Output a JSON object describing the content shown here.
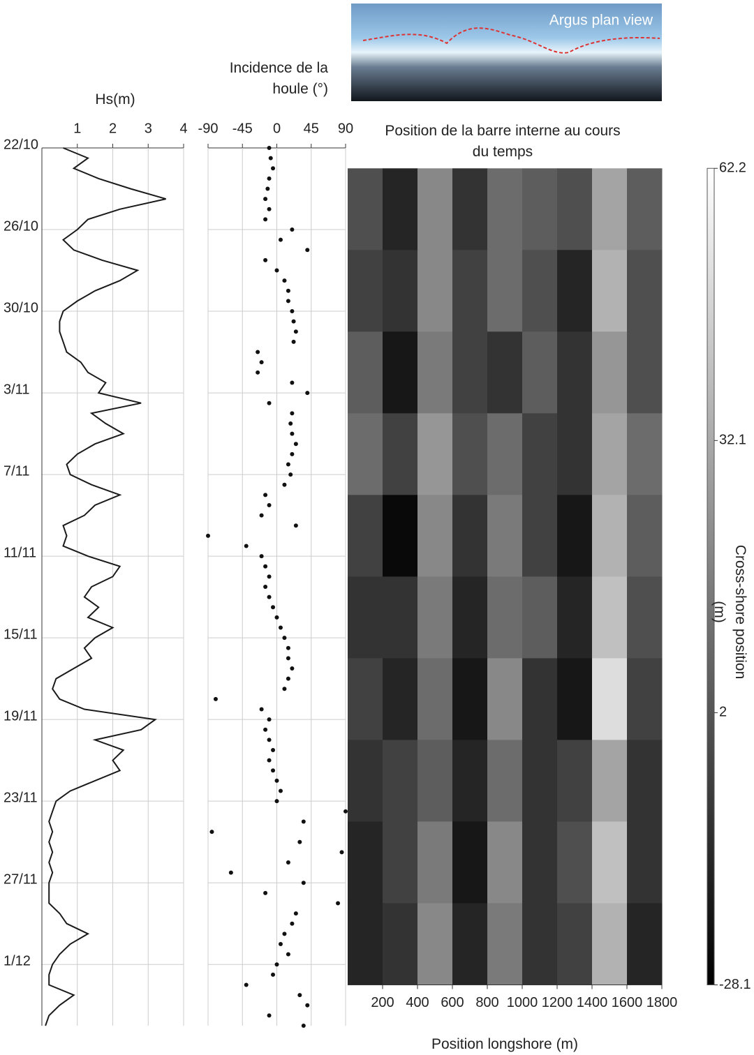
{
  "image": {
    "label": "Argus plan view"
  },
  "chart_data": [
    {
      "type": "line",
      "title": "Hs(m)",
      "x": [
        0,
        0.5,
        1,
        1.5,
        2,
        2.5,
        3,
        3.5,
        4,
        4.5,
        5,
        5.5,
        6,
        6.5,
        7,
        7.5,
        8,
        8.5,
        9,
        9.5,
        10,
        10.5,
        11,
        11.5,
        12,
        12.5,
        13,
        13.5,
        14,
        14.5,
        15,
        15.5,
        16,
        16.5,
        17,
        17.5,
        18,
        18.5,
        19,
        19.5,
        20,
        20.5,
        21,
        21.5,
        22,
        22.5,
        23,
        23.5,
        24,
        24.5,
        25,
        25.5,
        26,
        26.5,
        27,
        27.5,
        28,
        28.5,
        29,
        29.5,
        30,
        30.5,
        31,
        31.5,
        32,
        32.5,
        33,
        33.5,
        34,
        34.5,
        35,
        35.5,
        36,
        36.5,
        37,
        37.5,
        38,
        38.5,
        39,
        39.5,
        40,
        40.5,
        41,
        41.5,
        42,
        42.5,
        43
      ],
      "xlim": [
        0,
        43
      ],
      "xticks": [
        {
          "value": 0,
          "label": "22/10"
        },
        {
          "value": 4,
          "label": "26/10"
        },
        {
          "value": 8,
          "label": "30/10"
        },
        {
          "value": 12,
          "label": "3/11"
        },
        {
          "value": 16,
          "label": "7/11"
        },
        {
          "value": 20,
          "label": "11/11"
        },
        {
          "value": 24,
          "label": "15/11"
        },
        {
          "value": 28,
          "label": "19/11"
        },
        {
          "value": 32,
          "label": "23/11"
        },
        {
          "value": 36,
          "label": "27/11"
        },
        {
          "value": 40,
          "label": "1/12"
        }
      ],
      "ylim": [
        0,
        4
      ],
      "yticks": [
        1,
        2,
        3,
        4
      ],
      "grid": true,
      "series": [
        {
          "color": "#1a1a1a",
          "values": [
            0.6,
            1.3,
            0.9,
            1.6,
            2.5,
            3.5,
            2.2,
            1.3,
            1.0,
            0.6,
            0.9,
            1.7,
            2.7,
            2.2,
            1.5,
            1.0,
            0.6,
            0.5,
            0.5,
            0.6,
            0.7,
            1.1,
            1.3,
            1.8,
            1.6,
            2.8,
            1.4,
            1.8,
            2.3,
            1.5,
            1.0,
            0.7,
            0.8,
            1.4,
            2.2,
            1.5,
            1.2,
            0.6,
            0.7,
            0.6,
            1.3,
            2.2,
            2.0,
            1.4,
            1.2,
            1.6,
            1.3,
            2.0,
            1.5,
            1.2,
            1.4,
            0.9,
            0.4,
            0.3,
            0.5,
            1.2,
            3.2,
            2.8,
            1.5,
            2.3,
            2.0,
            2.2,
            1.5,
            0.8,
            0.4,
            0.3,
            0.2,
            0.3,
            0.2,
            0.3,
            0.2,
            0.3,
            0.2,
            0.2,
            0.2,
            0.5,
            0.7,
            1.3,
            0.8,
            0.5,
            0.3,
            0.2,
            0.2,
            0.9,
            0.5,
            0.2,
            0.1
          ]
        }
      ]
    },
    {
      "type": "scatter",
      "title": "Incidence de la houle (°)",
      "x": [
        0,
        0.5,
        1,
        1.5,
        2,
        2.5,
        3,
        3.5,
        4,
        4.5,
        5,
        5.5,
        6,
        6.5,
        7,
        7.5,
        8,
        8.5,
        9,
        9.5,
        10,
        10.5,
        11,
        11.5,
        12,
        12.5,
        13,
        13.5,
        14,
        14.5,
        15,
        15.5,
        16,
        16.5,
        17,
        17.5,
        18,
        18.5,
        19,
        19.5,
        20,
        20.5,
        21,
        21.5,
        22,
        22.5,
        23,
        23.5,
        24,
        24.5,
        25,
        25.5,
        26,
        26.5,
        27,
        27.5,
        28,
        28.5,
        29,
        29.5,
        30,
        30.5,
        31,
        31.5,
        32,
        32.5,
        33,
        33.5,
        34,
        34.5,
        35,
        35.5,
        36,
        36.5,
        37,
        37.5,
        38,
        38.5,
        39,
        39.5,
        40,
        40.5,
        41,
        41.5,
        42,
        42.5,
        43
      ],
      "xlim": [
        0,
        43
      ],
      "ylim": [
        -90,
        90
      ],
      "yticks": [
        -90,
        -45,
        0,
        45,
        90
      ],
      "grid": true,
      "series": [
        {
          "color": "#111111",
          "values": [
            -10,
            -8,
            -5,
            -10,
            -12,
            -15,
            -10,
            -15,
            20,
            5,
            40,
            -15,
            0,
            10,
            15,
            15,
            20,
            22,
            25,
            22,
            -25,
            -20,
            -25,
            20,
            40,
            -10,
            20,
            18,
            20,
            25,
            20,
            15,
            18,
            10,
            -15,
            -10,
            -20,
            25,
            -90,
            -40,
            -20,
            -15,
            -10,
            -15,
            -10,
            -5,
            0,
            5,
            10,
            15,
            15,
            20,
            15,
            10,
            -80,
            -20,
            -10,
            -15,
            -10,
            -5,
            -10,
            -5,
            0,
            5,
            0,
            90,
            35,
            -85,
            30,
            85,
            15,
            -60,
            35,
            -15,
            80,
            25,
            20,
            10,
            5,
            15,
            0,
            -5,
            -40,
            30,
            40,
            -10,
            35
          ]
        }
      ]
    },
    {
      "type": "heatmap",
      "title": "Position de la barre interne au cours du temps",
      "xlabel": "Position longshore (m)",
      "xlim": [
        0,
        1800
      ],
      "xticks": [
        200,
        400,
        600,
        800,
        1000,
        1200,
        1400,
        1600,
        1800
      ],
      "ylim": [
        0,
        43
      ],
      "x_edges": [
        0,
        200,
        400,
        600,
        800,
        1000,
        1200,
        1400,
        1600,
        1800
      ],
      "y_edges": [
        1,
        5,
        9,
        13,
        17,
        21,
        25,
        29,
        33,
        37,
        41
      ],
      "z": [
        [
          0,
          -15,
          20,
          -10,
          10,
          5,
          0,
          30,
          5
        ],
        [
          -5,
          -10,
          20,
          -5,
          10,
          0,
          -15,
          35,
          0
        ],
        [
          5,
          -20,
          15,
          -5,
          -10,
          5,
          -10,
          25,
          0
        ],
        [
          10,
          -5,
          25,
          0,
          10,
          -5,
          -10,
          30,
          10
        ],
        [
          -5,
          -25,
          20,
          -10,
          15,
          -5,
          -20,
          35,
          5
        ],
        [
          -10,
          -10,
          15,
          -15,
          10,
          5,
          -15,
          40,
          0
        ],
        [
          -5,
          -15,
          10,
          -20,
          20,
          -10,
          -20,
          50,
          -5
        ],
        [
          -10,
          -5,
          5,
          -15,
          10,
          -10,
          -5,
          30,
          -10
        ],
        [
          -15,
          -5,
          15,
          -20,
          20,
          -10,
          0,
          40,
          -10
        ],
        [
          -15,
          -10,
          20,
          -15,
          15,
          -10,
          -5,
          35,
          -15
        ]
      ],
      "zlim": [
        -28.1,
        62.2
      ],
      "zticks": [
        -28.1,
        2.0,
        32.1,
        62.2
      ],
      "zlabel": "Cross-shore position (m)",
      "colormap": [
        "#000000",
        "#ffffff"
      ]
    }
  ]
}
